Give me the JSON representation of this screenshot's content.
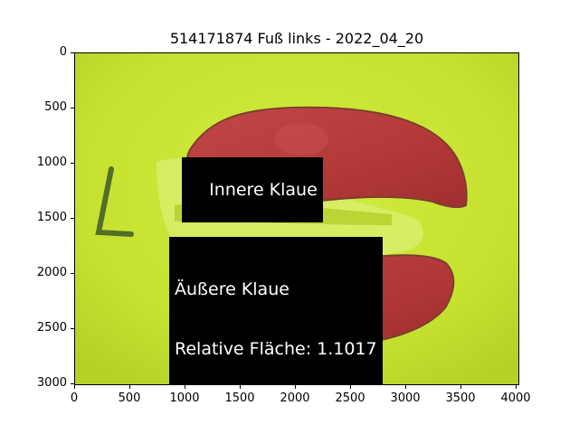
{
  "title": "514171874 Fuß links - 2022_04_20",
  "axes": {
    "x_ticks": [
      "0",
      "500",
      "1000",
      "1500",
      "2000",
      "2500",
      "3000",
      "3500",
      "4000"
    ],
    "y_ticks": [
      "0",
      "500",
      "1000",
      "1500",
      "2000",
      "2500",
      "3000"
    ]
  },
  "annotations": {
    "inner": "Innere Klaue",
    "outer_line1": "Äußere Klaue",
    "outer_line2": "Relative Fläche: 1.1017"
  },
  "colors": {
    "background": "#c6e12f",
    "claw": "#b53a3a",
    "label_bg": "#000000",
    "label_text": "#ffffff"
  }
}
